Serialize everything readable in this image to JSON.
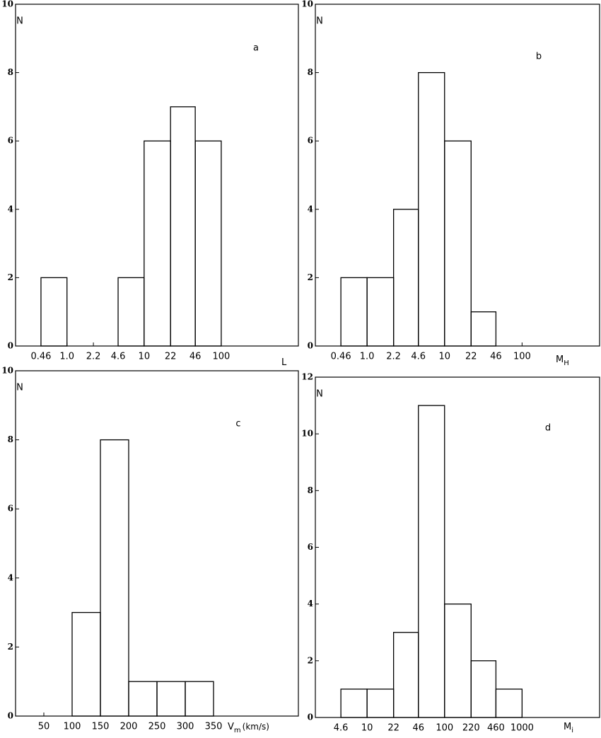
{
  "chart_data": [
    {
      "type": "histogram",
      "panel_label": "a",
      "ylabel": "N",
      "xlabel": "L",
      "xscale": "log",
      "bins": [
        0.46,
        {
          "value": 1,
          "label": "1.0"
        },
        2.2,
        4.6,
        10,
        22,
        46,
        100
      ],
      "values": [
        2,
        0,
        0,
        2,
        6,
        7,
        6
      ],
      "color": "#000000",
      "xlim": [
        0.2154,
        1000
      ],
      "xticks": [
        0.46,
        {
          "value": 1,
          "label": "1.0"
        },
        2.2,
        4.6,
        10,
        22,
        46,
        100
      ],
      "ylim": [
        0,
        10
      ],
      "yticks": [
        0,
        2,
        4,
        6,
        8,
        10
      ]
    },
    {
      "type": "histogram",
      "panel_label": "b",
      "ylabel": "N",
      "xlabel": "M",
      "xlabel_sub": "H",
      "xscale": "log",
      "bins": [
        0.46,
        {
          "value": 1,
          "label": "1.0"
        },
        2.2,
        4.6,
        10,
        22,
        46
      ],
      "values": [
        2,
        2,
        4,
        8,
        6,
        1
      ],
      "color": "#000000",
      "xlim": [
        0.2154,
        1000
      ],
      "xticks": [
        0.46,
        {
          "value": 1,
          "label": "1.0"
        },
        2.2,
        4.6,
        10,
        22,
        46,
        100
      ],
      "ylim": [
        0,
        10
      ],
      "yticks": [
        0,
        2,
        4,
        6,
        8,
        10
      ]
    },
    {
      "type": "histogram",
      "panel_label": "c",
      "ylabel": "N",
      "xlabel": "V",
      "xlabel_sub": "m",
      "xlabel_suffix": "(km/s)",
      "xscale": "linear",
      "bins": [
        100,
        150,
        200,
        250,
        300,
        350
      ],
      "values": [
        3,
        8,
        1,
        1,
        1
      ],
      "color": "#000000",
      "xlim": [
        0,
        500
      ],
      "xticks": [
        50,
        100,
        150,
        200,
        250,
        300,
        350
      ],
      "ylim": [
        0,
        10
      ],
      "yticks": [
        0,
        2,
        4,
        6,
        8,
        10
      ]
    },
    {
      "type": "histogram",
      "panel_label": "d",
      "ylabel": "N",
      "xlabel": "M",
      "xlabel_sub": "i",
      "xscale": "log",
      "bins": [
        4.6,
        10,
        22,
        46,
        100,
        220,
        460,
        1000
      ],
      "values": [
        1,
        1,
        3,
        11,
        4,
        2,
        1
      ],
      "color": "#000000",
      "xlim": [
        2.154,
        10000
      ],
      "xticks": [
        4.6,
        10,
        22,
        46,
        100,
        220,
        460,
        1000
      ],
      "ylim": [
        0,
        12
      ],
      "yticks": [
        0,
        2,
        4,
        6,
        8,
        10,
        12
      ]
    }
  ]
}
